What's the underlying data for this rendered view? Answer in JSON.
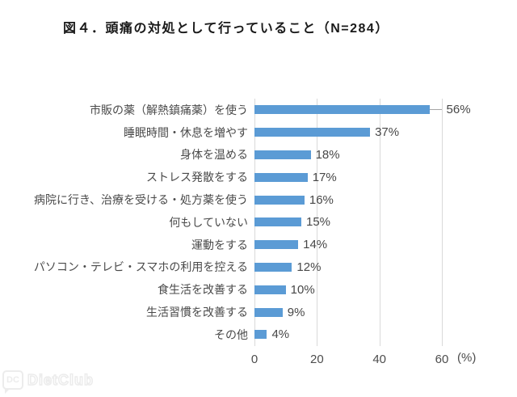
{
  "chart_data": {
    "type": "bar",
    "orientation": "horizontal",
    "title": "図４．頭痛の対処として行っていること（N=284）",
    "categories": [
      "市販の薬（解熱鎮痛薬）を使う",
      "睡眠時間・休息を増やす",
      "身体を温める",
      "ストレス発散をする",
      "病院に行き、治療を受ける・処方薬を使う",
      "何もしていない",
      "運動をする",
      "パソコン・テレビ・スマホの利用を控える",
      "食生活を改善する",
      "生活習慣を改善する",
      "その他"
    ],
    "values": [
      56,
      37,
      18,
      17,
      16,
      15,
      14,
      12,
      10,
      9,
      4
    ],
    "unit": "%",
    "xlabel": "(%)",
    "x_ticks": [
      0,
      20,
      40,
      60
    ],
    "xlim": [
      0,
      71
    ],
    "grid": true,
    "legend": false,
    "bar_color": "#5B9BD5",
    "gridline_color": "#D9D9D9",
    "text_color": "#4A4A4A"
  },
  "watermark": {
    "logo": "DC",
    "brand": "DietClub"
  }
}
